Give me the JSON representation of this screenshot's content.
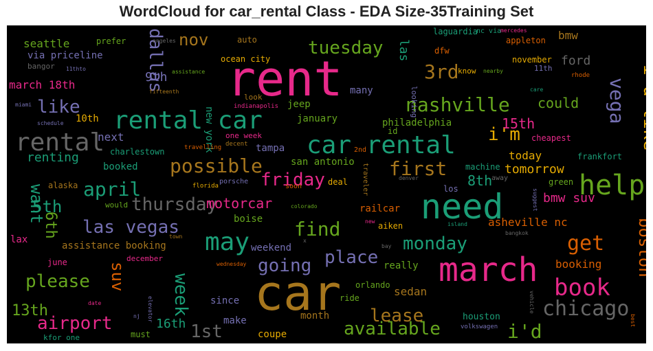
{
  "title": "WordCloud for car_rental Class - EDA Size-35Training Set",
  "palette": {
    "pink": "#e7298a",
    "teal": "#1b9e77",
    "orange": "#d95f02",
    "purple": "#7570b3",
    "green": "#66a61e",
    "gold": "#e6ab02",
    "brown": "#a6761d",
    "gray": "#666666"
  },
  "chart_data": {
    "type": "wordcloud",
    "words": [
      {
        "text": "rent",
        "color": "pink"
      },
      {
        "text": "car",
        "color": "brown"
      },
      {
        "text": "need",
        "color": "teal"
      },
      {
        "text": "march",
        "color": "pink"
      },
      {
        "text": "car rental",
        "color": "teal"
      },
      {
        "text": "rental car",
        "color": "teal"
      },
      {
        "text": "rental",
        "color": "gray"
      },
      {
        "text": "help",
        "color": "green"
      },
      {
        "text": "book",
        "color": "pink"
      },
      {
        "text": "may",
        "color": "teal"
      },
      {
        "text": "i'd like",
        "color": "gold"
      },
      {
        "text": "possible",
        "color": "brown"
      },
      {
        "text": "nashville",
        "color": "green"
      },
      {
        "text": "chicago",
        "color": "gray"
      },
      {
        "text": "airport",
        "color": "pink"
      },
      {
        "text": "available",
        "color": "green"
      },
      {
        "text": "find",
        "color": "green"
      },
      {
        "text": "las vegas",
        "color": "purple"
      },
      {
        "text": "get",
        "color": "orange"
      },
      {
        "text": "thursday",
        "color": "gray"
      },
      {
        "text": "monday",
        "color": "teal"
      },
      {
        "text": "tuesday",
        "color": "green"
      },
      {
        "text": "first",
        "color": "brown"
      },
      {
        "text": "friday",
        "color": "pink"
      },
      {
        "text": "april",
        "color": "teal"
      },
      {
        "text": "please",
        "color": "green"
      },
      {
        "text": "place",
        "color": "purple"
      },
      {
        "text": "going",
        "color": "purple"
      },
      {
        "text": "lease",
        "color": "brown"
      },
      {
        "text": "1st",
        "color": "gray"
      },
      {
        "text": "i'd",
        "color": "green"
      },
      {
        "text": "vega",
        "color": "purple"
      },
      {
        "text": "boston",
        "color": "orange"
      },
      {
        "text": "dallas",
        "color": "purple"
      },
      {
        "text": "week",
        "color": "teal"
      },
      {
        "text": "i'm",
        "color": "gold"
      },
      {
        "text": "3rd",
        "color": "brown"
      },
      {
        "text": "like",
        "color": "purple"
      },
      {
        "text": "nov",
        "color": "brown"
      },
      {
        "text": "want",
        "color": "teal"
      },
      {
        "text": "suv",
        "color": "orange"
      },
      {
        "text": "6th",
        "color": "green"
      },
      {
        "text": "5th",
        "color": "teal"
      },
      {
        "text": "13th",
        "color": "green"
      },
      {
        "text": "motorcar",
        "color": "pink"
      },
      {
        "text": "8th",
        "color": "teal"
      },
      {
        "text": "15th",
        "color": "pink"
      },
      {
        "text": "16th",
        "color": "teal"
      },
      {
        "text": "could",
        "color": "green"
      },
      {
        "text": "tomorrow",
        "color": "gold"
      },
      {
        "text": "las",
        "color": "teal"
      },
      {
        "text": "9th",
        "color": "purple"
      },
      {
        "text": "bmw suv",
        "color": "pink"
      },
      {
        "text": "asheville nc",
        "color": "orange"
      },
      {
        "text": "renting",
        "color": "teal"
      },
      {
        "text": "march 18th",
        "color": "pink"
      },
      {
        "text": "next",
        "color": "purple"
      },
      {
        "text": "bmw",
        "color": "brown"
      },
      {
        "text": "ford",
        "color": "gray"
      },
      {
        "text": "booking",
        "color": "orange"
      },
      {
        "text": "today",
        "color": "gold"
      },
      {
        "text": "sedan",
        "color": "brown"
      },
      {
        "text": "seattle",
        "color": "green"
      },
      {
        "text": "10th",
        "color": "gold"
      },
      {
        "text": "booked",
        "color": "teal"
      },
      {
        "text": "new york",
        "color": "teal"
      },
      {
        "text": "month",
        "color": "brown"
      },
      {
        "text": "coupe",
        "color": "gold"
      },
      {
        "text": "make",
        "color": "purple"
      },
      {
        "text": "since",
        "color": "purple"
      },
      {
        "text": "weekend",
        "color": "purple"
      },
      {
        "text": "assistance booking",
        "color": "brown"
      },
      {
        "text": "jeep",
        "color": "green"
      },
      {
        "text": "boise",
        "color": "green"
      },
      {
        "text": "tampa",
        "color": "purple"
      },
      {
        "text": "san antonio",
        "color": "green"
      },
      {
        "text": "january",
        "color": "green"
      },
      {
        "text": "philadelphia",
        "color": "green"
      },
      {
        "text": "many",
        "color": "purple"
      },
      {
        "text": "really",
        "color": "green"
      },
      {
        "text": "houston",
        "color": "teal"
      },
      {
        "text": "via priceline",
        "color": "purple"
      },
      {
        "text": "railcar",
        "color": "orange"
      },
      {
        "text": "must",
        "color": "green"
      },
      {
        "text": "lax",
        "color": "pink"
      },
      {
        "text": "june",
        "color": "pink"
      },
      {
        "text": "charlestown",
        "color": "teal"
      },
      {
        "text": "prefer",
        "color": "green"
      },
      {
        "text": "auto",
        "color": "brown"
      },
      {
        "text": "ocean city",
        "color": "gold"
      },
      {
        "text": "november",
        "color": "gold"
      },
      {
        "text": "frankfort",
        "color": "teal"
      },
      {
        "text": "cheapest",
        "color": "pink"
      },
      {
        "text": "orlando",
        "color": "green"
      },
      {
        "text": "ride",
        "color": "green"
      },
      {
        "text": "green",
        "color": "green"
      },
      {
        "text": "aiken",
        "color": "gold"
      },
      {
        "text": "alaska",
        "color": "brown"
      },
      {
        "text": "dfw",
        "color": "orange"
      },
      {
        "text": "appleton",
        "color": "orange"
      },
      {
        "text": "laguardia",
        "color": "teal"
      },
      {
        "text": "11th",
        "color": "purple"
      },
      {
        "text": "id",
        "color": "green"
      },
      {
        "text": "machine",
        "color": "teal"
      },
      {
        "text": "los",
        "color": "purple"
      },
      {
        "text": "deal",
        "color": "gold"
      },
      {
        "text": "kfor one",
        "color": "teal"
      },
      {
        "text": "bangor",
        "color": "gray"
      },
      {
        "text": "december",
        "color": "pink"
      },
      {
        "text": "would",
        "color": "green"
      },
      {
        "text": "one week",
        "color": "pink"
      },
      {
        "text": "look",
        "color": "brown"
      },
      {
        "text": "looking",
        "color": "purple"
      },
      {
        "text": "know",
        "color": "gold"
      },
      {
        "text": "nc via",
        "color": "teal"
      },
      {
        "text": "2nd",
        "color": "orange"
      },
      {
        "text": "traveler",
        "color": "brown"
      },
      {
        "text": "volkswagen",
        "color": "purple"
      },
      {
        "text": "porsche",
        "color": "purple"
      },
      {
        "text": "soon",
        "color": "orange"
      },
      {
        "text": "away",
        "color": "gray"
      },
      {
        "text": "decent",
        "color": "brown"
      },
      {
        "text": "travelling",
        "color": "orange"
      },
      {
        "text": "indianapolis",
        "color": "pink"
      },
      {
        "text": "florida",
        "color": "gold"
      },
      {
        "text": "colorado",
        "color": "green"
      },
      {
        "text": "bay",
        "color": "gray"
      },
      {
        "text": "x",
        "color": "gray"
      },
      {
        "text": "nj",
        "color": "purple"
      },
      {
        "text": "wednesday",
        "color": "orange"
      },
      {
        "text": "town",
        "color": "brown"
      },
      {
        "text": "date",
        "color": "pink"
      },
      {
        "text": "elevator",
        "color": "purple"
      },
      {
        "text": "new",
        "color": "pink"
      },
      {
        "text": "bangkok",
        "color": "gray"
      },
      {
        "text": "island",
        "color": "teal"
      },
      {
        "text": "denver",
        "color": "gray"
      },
      {
        "text": "suggest",
        "color": "purple"
      },
      {
        "text": "vehicle",
        "color": "gray"
      },
      {
        "text": "best",
        "color": "orange"
      },
      {
        "text": "rhode",
        "color": "orange"
      },
      {
        "text": "care",
        "color": "teal"
      },
      {
        "text": "nearby",
        "color": "green"
      },
      {
        "text": "mercedes",
        "color": "pink"
      },
      {
        "text": "angeles",
        "color": "gray"
      },
      {
        "text": "assistance",
        "color": "green"
      },
      {
        "text": "11thto",
        "color": "purple"
      },
      {
        "text": "fifteenth",
        "color": "brown"
      },
      {
        "text": "miami",
        "color": "purple"
      },
      {
        "text": "schedule",
        "color": "purple"
      }
    ]
  }
}
